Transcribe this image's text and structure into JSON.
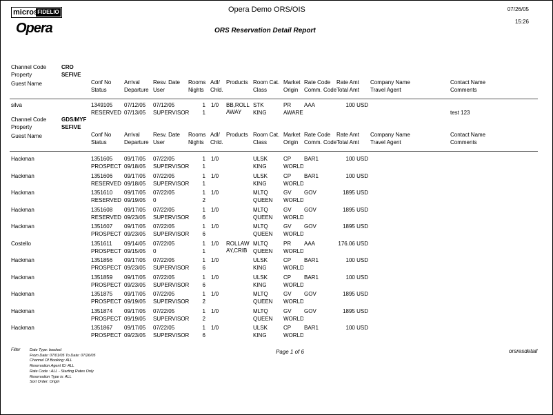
{
  "header": {
    "logo_micros": "micros",
    "logo_fidelio": "FIDELIO",
    "logo_opera": "Opera",
    "title": "Opera Demo ORS/OIS",
    "report_title": "ORS Reservation Detail Report",
    "date": "07/26/05",
    "time": "15:26"
  },
  "labels": {
    "channel_code": "Channel Code",
    "property": "Property",
    "guest_name": "Guest Name"
  },
  "columns": [
    {
      "line1": "Conf No",
      "line2": "Status"
    },
    {
      "line1": "Arrival",
      "line2": "Departure"
    },
    {
      "line1": "Resv. Date",
      "line2": "User"
    },
    {
      "line1": "Rooms",
      "line2": "Nights"
    },
    {
      "line1": "Adl/",
      "line2": "Chld."
    },
    {
      "line1": "Products"
    },
    {
      "line1": "Room Cat.",
      "line2": "Class"
    },
    {
      "line1": "Market",
      "line2": "Origin"
    },
    {
      "line1": "Rate Code",
      "line2": "Comm. Code"
    },
    {
      "line1": "Rate Amt",
      "line2": "Total Amt"
    },
    {
      "line1": "Company Name",
      "line2": "Travel Agent"
    },
    {
      "line1": "Contact Name",
      "line2": "Comments"
    }
  ],
  "groups": [
    {
      "channel_code": "CRO",
      "property": "SEFIVE",
      "reservations": [
        {
          "guest": "silva",
          "conf_no": "1349105",
          "arrival": "07/12/05",
          "resv_date": "07/12/05",
          "rooms": "1",
          "adl_chld": "1/0",
          "products": "BB,ROLL AWAY",
          "room_cat": "STK",
          "market": "PR",
          "rate_code": "AAA",
          "rate_amt": "100 USD",
          "status": "RESERVED",
          "departure": "07/13/05",
          "user": "SUPERVISOR",
          "nights": "1",
          "class": "KING",
          "origin": "AWARE",
          "comments": "test 123"
        }
      ]
    },
    {
      "channel_code": "GDS/MYF",
      "property": "SEFIVE",
      "reservations": [
        {
          "guest": "Hackman",
          "conf_no": "1351605",
          "arrival": "09/17/05",
          "resv_date": "07/22/05",
          "rooms": "1",
          "adl_chld": "1/0",
          "room_cat": "ULSK",
          "market": "CP",
          "rate_code": "BAR1",
          "rate_amt": "100 USD",
          "status": "PROSPECT",
          "departure": "09/18/05",
          "user": "SUPERVISOR",
          "nights": "1",
          "class": "KING",
          "origin": "WORLD"
        },
        {
          "guest": "Hackman",
          "conf_no": "1351606",
          "arrival": "09/17/05",
          "resv_date": "07/22/05",
          "rooms": "1",
          "adl_chld": "1/0",
          "room_cat": "ULSK",
          "market": "CP",
          "rate_code": "BAR1",
          "rate_amt": "100 USD",
          "status": "RESERVED",
          "departure": "09/18/05",
          "user": "SUPERVISOR",
          "nights": "1",
          "class": "KING",
          "origin": "WORLD"
        },
        {
          "guest": "Hackman",
          "conf_no": "1351610",
          "arrival": "09/17/05",
          "resv_date": "07/22/05",
          "rooms": "1",
          "adl_chld": "1/0",
          "room_cat": "MLTQ",
          "market": "GV",
          "rate_code": "GOV",
          "rate_amt": "1895 USD",
          "status": "RESERVED",
          "departure": "09/19/05",
          "user": "0",
          "nights": "2",
          "class": "QUEEN",
          "origin": "WORLD"
        },
        {
          "guest": "Hackman",
          "conf_no": "1351608",
          "arrival": "09/17/05",
          "resv_date": "07/22/05",
          "rooms": "1",
          "adl_chld": "1/0",
          "room_cat": "MLTQ",
          "market": "GV",
          "rate_code": "GOV",
          "rate_amt": "1895 USD",
          "status": "RESERVED",
          "departure": "09/23/05",
          "user": "SUPERVISOR",
          "nights": "6",
          "class": "QUEEN",
          "origin": "WORLD"
        },
        {
          "guest": "Hackman",
          "conf_no": "1351607",
          "arrival": "09/17/05",
          "resv_date": "07/22/05",
          "rooms": "1",
          "adl_chld": "1/0",
          "room_cat": "MLTQ",
          "market": "GV",
          "rate_code": "GOV",
          "rate_amt": "1895 USD",
          "status": "PROSPECT",
          "departure": "09/23/05",
          "user": "SUPERVISOR",
          "nights": "6",
          "class": "QUEEN",
          "origin": "WORLD"
        },
        {
          "guest": "Costello",
          "conf_no": "1351611",
          "arrival": "09/14/05",
          "resv_date": "07/22/05",
          "rooms": "1",
          "adl_chld": "1/0",
          "products": "ROLLAWAY,CRIB",
          "room_cat": "MLTQ",
          "market": "PR",
          "rate_code": "AAA",
          "rate_amt": "176.06 USD",
          "status": "PROSPECT",
          "departure": "09/15/05",
          "user": "0",
          "nights": "1",
          "class": "QUEEN",
          "origin": "WORLD"
        },
        {
          "guest": "Hackman",
          "conf_no": "1351856",
          "arrival": "09/17/05",
          "resv_date": "07/22/05",
          "rooms": "1",
          "adl_chld": "1/0",
          "room_cat": "ULSK",
          "market": "CP",
          "rate_code": "BAR1",
          "rate_amt": "100 USD",
          "status": "PROSPECT",
          "departure": "09/23/05",
          "user": "SUPERVISOR",
          "nights": "6",
          "class": "KING",
          "origin": "WORLD"
        },
        {
          "guest": "Hackman",
          "conf_no": "1351859",
          "arrival": "09/17/05",
          "resv_date": "07/22/05",
          "rooms": "1",
          "adl_chld": "1/0",
          "room_cat": "ULSK",
          "market": "CP",
          "rate_code": "BAR1",
          "rate_amt": "100 USD",
          "status": "PROSPECT",
          "departure": "09/23/05",
          "user": "SUPERVISOR",
          "nights": "6",
          "class": "KING",
          "origin": "WORLD"
        },
        {
          "guest": "Hackman",
          "conf_no": "1351875",
          "arrival": "09/17/05",
          "resv_date": "07/22/05",
          "rooms": "1",
          "adl_chld": "1/0",
          "room_cat": "MLTQ",
          "market": "GV",
          "rate_code": "GOV",
          "rate_amt": "1895 USD",
          "status": "PROSPECT",
          "departure": "09/19/05",
          "user": "SUPERVISOR",
          "nights": "2",
          "class": "QUEEN",
          "origin": "WORLD"
        },
        {
          "guest": "Hackman",
          "conf_no": "1351874",
          "arrival": "09/17/05",
          "resv_date": "07/22/05",
          "rooms": "1",
          "adl_chld": "1/0",
          "room_cat": "MLTQ",
          "market": "GV",
          "rate_code": "GOV",
          "rate_amt": "1895 USD",
          "status": "PROSPECT",
          "departure": "09/19/05",
          "user": "SUPERVISOR",
          "nights": "2",
          "class": "QUEEN",
          "origin": "WORLD"
        },
        {
          "guest": "Hackman",
          "conf_no": "1351867",
          "arrival": "09/17/05",
          "resv_date": "07/22/05",
          "rooms": "1",
          "adl_chld": "1/0",
          "room_cat": "ULSK",
          "market": "CP",
          "rate_code": "BAR1",
          "rate_amt": "100 USD",
          "status": "PROSPECT",
          "departure": "09/23/05",
          "user": "SUPERVISOR",
          "nights": "6",
          "class": "KING",
          "origin": "WORLD"
        }
      ]
    }
  ],
  "footer": {
    "filter_label": "Filter",
    "filters": [
      "Date Type: booked",
      "From Date: 07/01/05  To Date: 07/26/05",
      "Channel Of Booking: ALL",
      "Reservation Agent ID: ALL",
      "Rate Code  :  ALL - Starting Rates Only",
      "Reservation Type is: ALL",
      "Sort Order: Origin"
    ],
    "page": "Page 1 of 6",
    "report_name": "orsresdetail"
  }
}
